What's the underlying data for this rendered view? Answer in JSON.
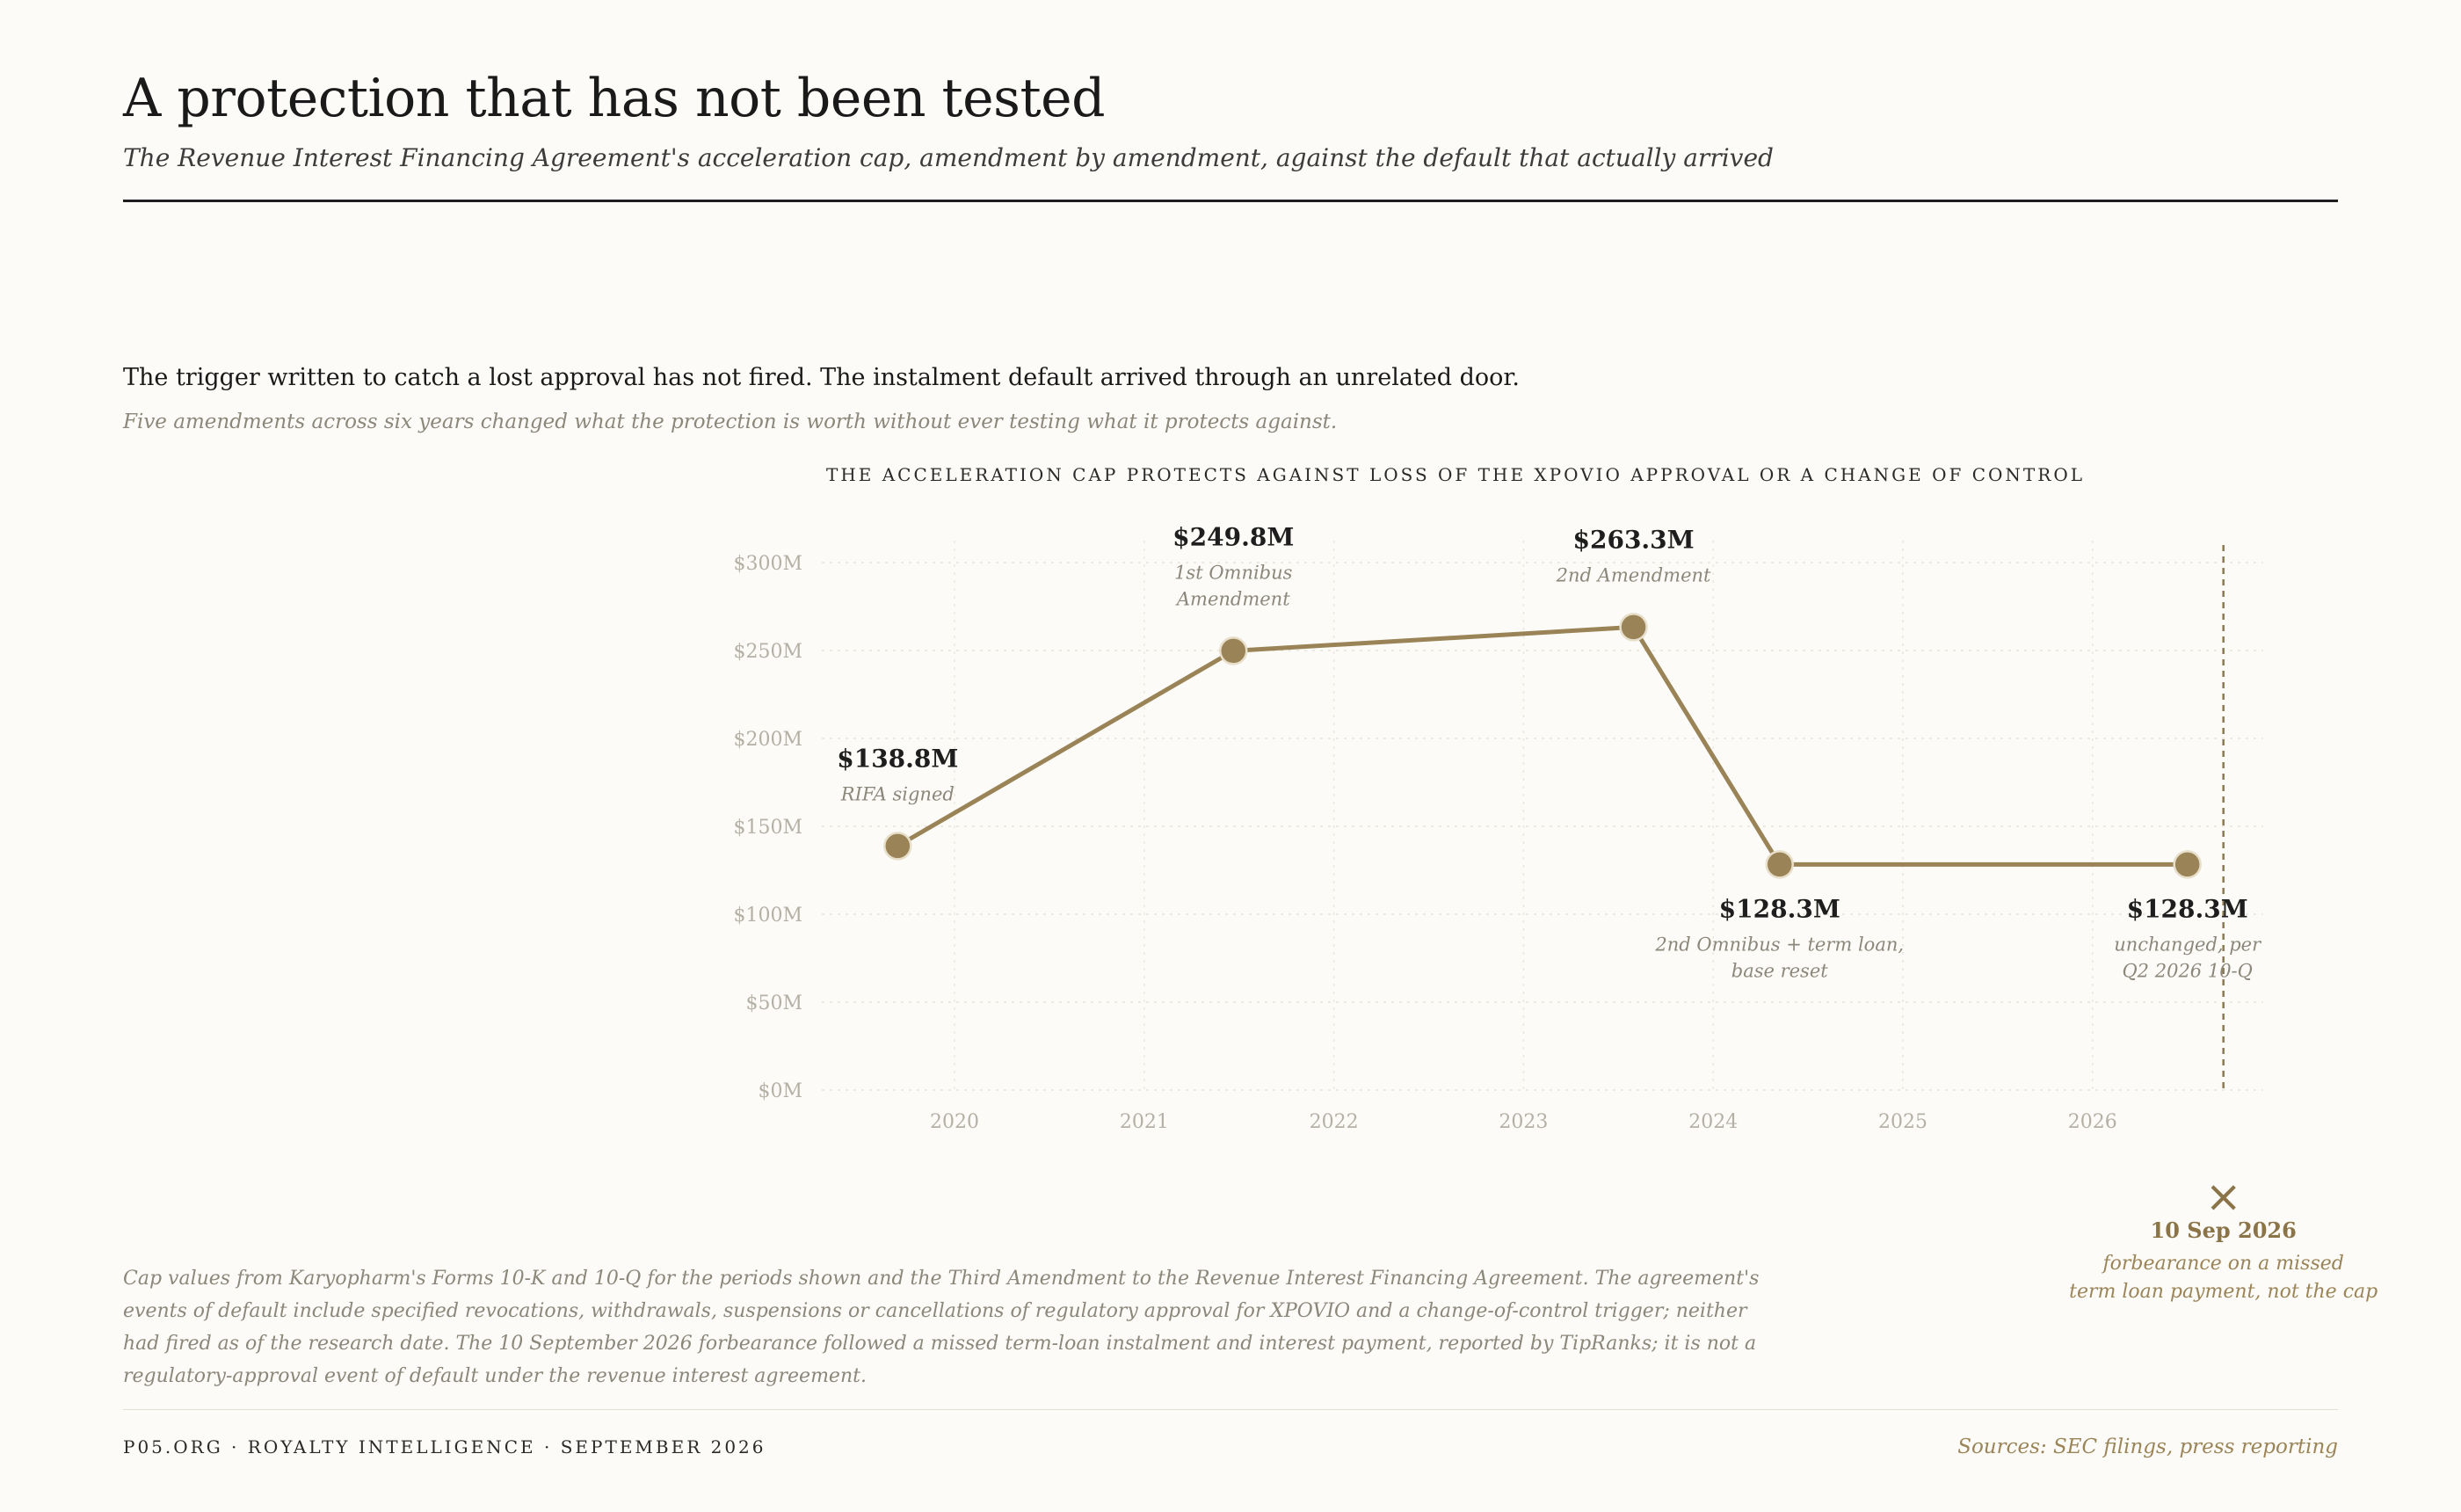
{
  "header": {
    "title": "A protection that has not been tested",
    "subtitle": "The Revenue Interest Financing Agreement's acceleration cap, amendment by amendment, against the default that actually arrived"
  },
  "intro": {
    "lede": "The trigger written to catch a lost approval has not fired. The instalment default arrived through an unrelated door.",
    "dek": "Five amendments across six years changed what the protection is worth without ever testing what it protects against."
  },
  "chart_data": {
    "type": "line",
    "title": "THE ACCELERATION CAP PROTECTS AGAINST LOSS OF THE XPOVIO APPROVAL OR A CHANGE OF CONTROL",
    "xlabel": "",
    "ylabel": "",
    "x_range": [
      2019.3,
      2026.9
    ],
    "ylim": [
      0,
      300
    ],
    "x_ticks": [
      2020,
      2021,
      2022,
      2023,
      2024,
      2025,
      2026
    ],
    "x_tick_labels": [
      "2020",
      "2021",
      "2022",
      "2023",
      "2024",
      "2025",
      "2026"
    ],
    "y_ticks": [
      0,
      50,
      100,
      150,
      200,
      250,
      300
    ],
    "y_tick_labels": [
      "$0M",
      "$50M",
      "$100M",
      "$150M",
      "$200M",
      "$250M",
      "$300M"
    ],
    "grid": true,
    "line_color": "#9a8457",
    "series": [
      {
        "name": "",
        "points": [
          {
            "x": 2019.7,
            "y": 138.8,
            "value_label": "$138.8M",
            "note": [
              "RIFA signed"
            ],
            "label_pos": "above"
          },
          {
            "x": 2021.47,
            "y": 249.8,
            "value_label": "$249.8M",
            "note": [
              "1st Omnibus",
              "Amendment"
            ],
            "label_pos": "above"
          },
          {
            "x": 2023.58,
            "y": 263.3,
            "value_label": "$263.3M",
            "note": [
              "2nd Amendment"
            ],
            "label_pos": "above"
          },
          {
            "x": 2024.35,
            "y": 128.3,
            "value_label": "$128.3M",
            "note": [
              "2nd Omnibus + term loan,",
              "base reset"
            ],
            "label_pos": "below"
          },
          {
            "x": 2026.5,
            "y": 128.3,
            "value_label": "$128.3M",
            "note": [
              "unchanged, per",
              "Q2 2026 10-Q"
            ],
            "label_pos": "below"
          }
        ]
      }
    ],
    "event": {
      "x": 2026.69,
      "marker": "×",
      "date_label": "10 Sep 2026",
      "note": [
        "forbearance on a missed",
        "term loan payment, not the cap"
      ]
    }
  },
  "footnote": "Cap values from Karyopharm's Forms 10-K and 10-Q for the periods shown and the Third Amendment to the Revenue Interest Financing Agreement. The agreement's events of default include specified revocations, withdrawals, suspensions or cancellations of regulatory approval for XPOVIO and a change-of-control trigger; neither had fired as of the research date. The 10 September 2026 forbearance followed a missed term-loan instalment and interest payment, reported by TipRanks; it is not a regulatory-approval event of default under the revenue interest agreement.",
  "footer": {
    "left": "P05.ORG · ROYALTY INTELLIGENCE · SEPTEMBER 2026",
    "right": "Sources: SEC filings, press reporting"
  }
}
